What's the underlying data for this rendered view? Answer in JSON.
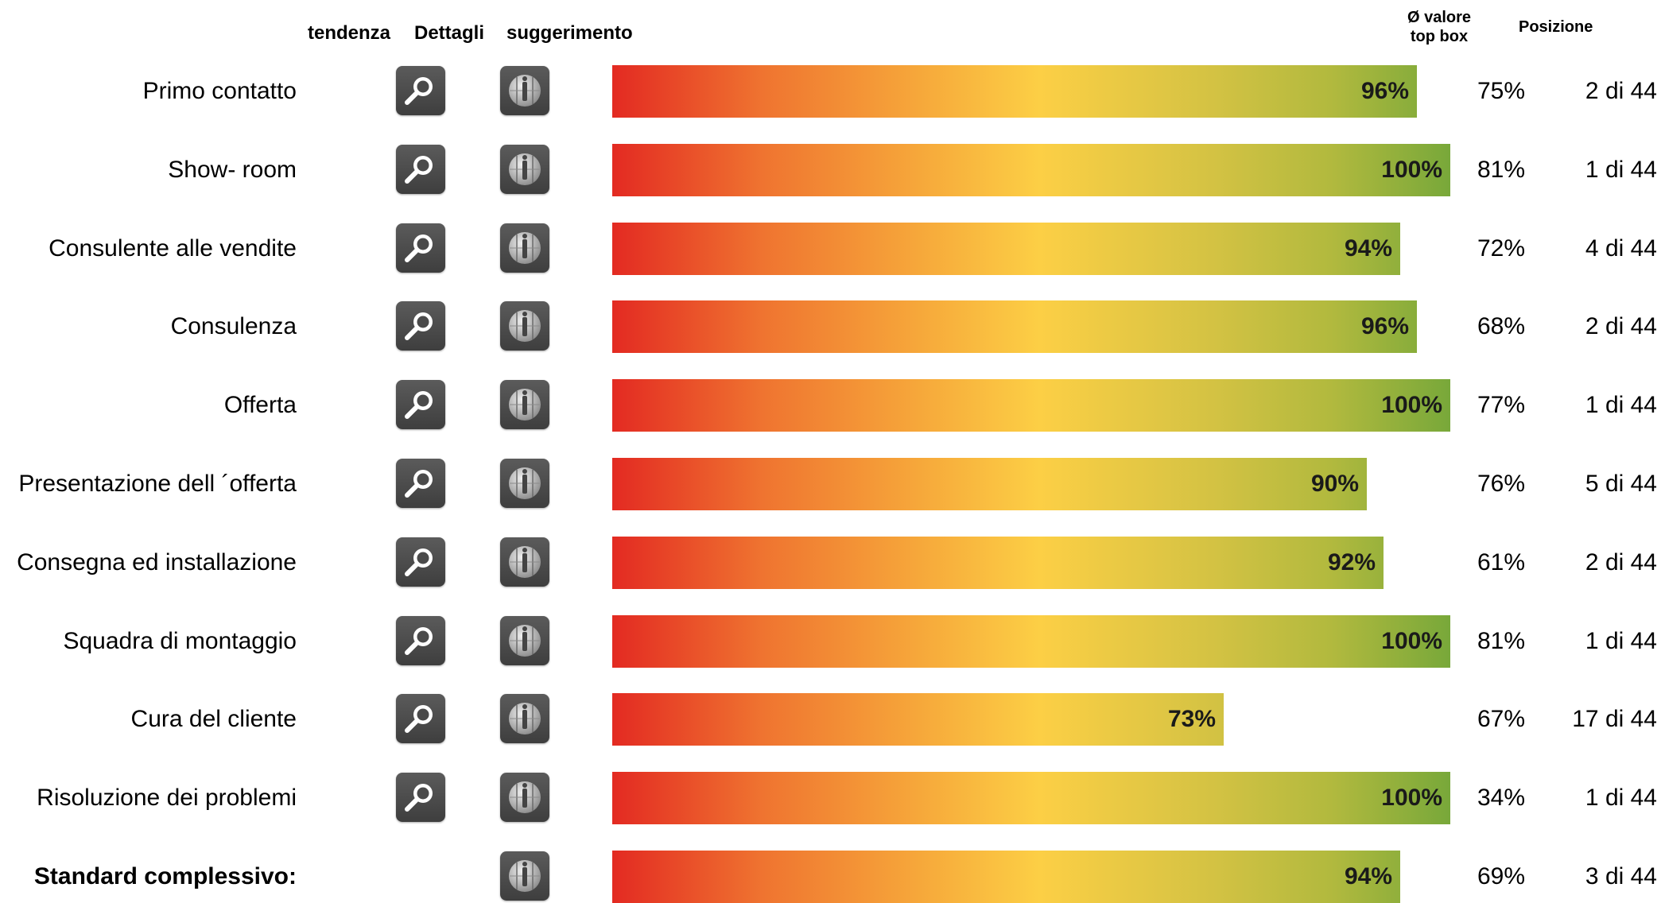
{
  "header": {
    "col_tendenza": "tendenza",
    "col_dettagli": "Dettagli",
    "col_suggerimento": "suggerimento",
    "col_avg_line1": "Ø valore",
    "col_avg_line2": "top box",
    "col_posizione": "Posizione"
  },
  "icons": {
    "details": "magnifier-icon",
    "suggestion": "info-globe-icon"
  },
  "colors": {
    "bar_start": "#e32a22",
    "bar_mid": "#fccf45",
    "bar_end": "#78a83a",
    "button_bg": "#4a4a4a"
  },
  "rows": [
    {
      "label": "Primo contatto",
      "value_label": "96%",
      "value": 96,
      "avg": "75%",
      "position": "2 di 44",
      "has_details": true,
      "bold": false
    },
    {
      "label": "Show- room",
      "value_label": "100%",
      "value": 100,
      "avg": "81%",
      "position": "1 di 44",
      "has_details": true,
      "bold": false
    },
    {
      "label": "Consulente alle vendite",
      "value_label": "94%",
      "value": 94,
      "avg": "72%",
      "position": "4 di 44",
      "has_details": true,
      "bold": false
    },
    {
      "label": "Consulenza",
      "value_label": "96%",
      "value": 96,
      "avg": "68%",
      "position": "2 di 44",
      "has_details": true,
      "bold": false
    },
    {
      "label": "Offerta",
      "value_label": "100%",
      "value": 100,
      "avg": "77%",
      "position": "1 di 44",
      "has_details": true,
      "bold": false
    },
    {
      "label": "Presentazione dell ´offerta",
      "value_label": "90%",
      "value": 90,
      "avg": "76%",
      "position": "5 di 44",
      "has_details": true,
      "bold": false
    },
    {
      "label": "Consegna ed installazione",
      "value_label": "92%",
      "value": 92,
      "avg": "61%",
      "position": "2 di 44",
      "has_details": true,
      "bold": false
    },
    {
      "label": "Squadra di montaggio",
      "value_label": "100%",
      "value": 100,
      "avg": "81%",
      "position": "1 di 44",
      "has_details": true,
      "bold": false
    },
    {
      "label": "Cura del cliente",
      "value_label": "73%",
      "value": 73,
      "avg": "67%",
      "position": "17 di 44",
      "has_details": true,
      "bold": false
    },
    {
      "label": "Risoluzione dei problemi",
      "value_label": "100%",
      "value": 100,
      "avg": "34%",
      "position": "1 di 44",
      "has_details": true,
      "bold": false
    },
    {
      "label": "Standard complessivo:",
      "value_label": "94%",
      "value": 94,
      "avg": "69%",
      "position": "3 di 44",
      "has_details": false,
      "bold": true
    }
  ]
}
